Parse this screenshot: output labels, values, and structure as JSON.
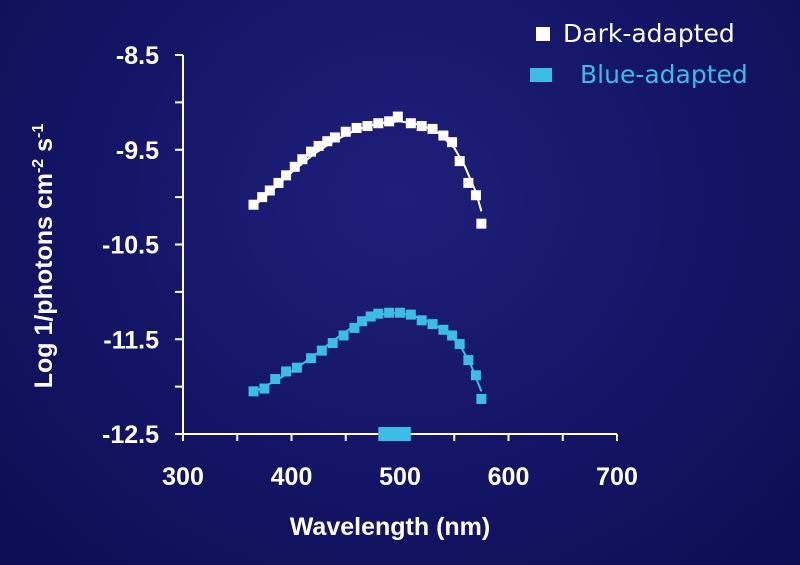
{
  "chart_data": {
    "type": "scatter",
    "title": "",
    "xlabel": "Wavelength (nm)",
    "ylabel_main": "Log 1/photons cm",
    "ylabel_sup1": "-2",
    "ylabel_mid": " s",
    "ylabel_sup2": "-1",
    "xlim": [
      300,
      700
    ],
    "ylim": [
      -12.5,
      -8.5
    ],
    "x_ticks": [
      300,
      400,
      500,
      600,
      700
    ],
    "x_tick_labels": [
      "300",
      "400",
      "500",
      "600",
      "700"
    ],
    "y_ticks": [
      -8.5,
      -9.5,
      -10.5,
      -11.5,
      -12.5
    ],
    "y_tick_labels": [
      "-8.5",
      "-9.5",
      "-10.5",
      "-11.5",
      "-12.5"
    ],
    "y_minor_step": 0.5,
    "legend_placement": "top-right",
    "marker_on_x_axis": {
      "x": [
        480,
        510
      ],
      "color": "#3bbde8"
    },
    "series": [
      {
        "name": "Dark-adapted",
        "color": "#ffffff",
        "marker": "square",
        "points": [
          [
            365,
            -10.08
          ],
          [
            373,
            -10.0
          ],
          [
            380,
            -9.93
          ],
          [
            388,
            -9.85
          ],
          [
            395,
            -9.77
          ],
          [
            403,
            -9.68
          ],
          [
            410,
            -9.6
          ],
          [
            418,
            -9.52
          ],
          [
            425,
            -9.46
          ],
          [
            433,
            -9.41
          ],
          [
            440,
            -9.37
          ],
          [
            450,
            -9.31
          ],
          [
            460,
            -9.27
          ],
          [
            470,
            -9.25
          ],
          [
            480,
            -9.22
          ],
          [
            490,
            -9.2
          ],
          [
            498,
            -9.15
          ],
          [
            510,
            -9.22
          ],
          [
            520,
            -9.25
          ],
          [
            530,
            -9.28
          ],
          [
            540,
            -9.35
          ],
          [
            548,
            -9.42
          ],
          [
            555,
            -9.62
          ],
          [
            563,
            -9.85
          ],
          [
            570,
            -9.98
          ],
          [
            575,
            -10.28
          ]
        ],
        "fit": [
          [
            365,
            -10.1
          ],
          [
            380,
            -9.95
          ],
          [
            400,
            -9.74
          ],
          [
            420,
            -9.55
          ],
          [
            440,
            -9.4
          ],
          [
            460,
            -9.29
          ],
          [
            480,
            -9.22
          ],
          [
            500,
            -9.2
          ],
          [
            520,
            -9.24
          ],
          [
            535,
            -9.32
          ],
          [
            550,
            -9.48
          ],
          [
            560,
            -9.68
          ],
          [
            570,
            -9.95
          ],
          [
            575,
            -10.15
          ]
        ]
      },
      {
        "name": "Blue-adapted",
        "color": "#3bbde8",
        "marker": "square",
        "points": [
          [
            365,
            -12.05
          ],
          [
            375,
            -12.02
          ],
          [
            385,
            -11.92
          ],
          [
            395,
            -11.84
          ],
          [
            405,
            -11.8
          ],
          [
            418,
            -11.7
          ],
          [
            428,
            -11.62
          ],
          [
            438,
            -11.54
          ],
          [
            448,
            -11.46
          ],
          [
            458,
            -11.38
          ],
          [
            465,
            -11.31
          ],
          [
            473,
            -11.26
          ],
          [
            480,
            -11.23
          ],
          [
            490,
            -11.22
          ],
          [
            500,
            -11.22
          ],
          [
            510,
            -11.24
          ],
          [
            520,
            -11.3
          ],
          [
            530,
            -11.34
          ],
          [
            540,
            -11.4
          ],
          [
            548,
            -11.46
          ],
          [
            555,
            -11.55
          ],
          [
            563,
            -11.72
          ],
          [
            570,
            -11.88
          ],
          [
            575,
            -12.13
          ]
        ],
        "fit": [
          [
            365,
            -12.06
          ],
          [
            380,
            -11.97
          ],
          [
            400,
            -11.84
          ],
          [
            420,
            -11.68
          ],
          [
            440,
            -11.5
          ],
          [
            460,
            -11.34
          ],
          [
            480,
            -11.24
          ],
          [
            500,
            -11.22
          ],
          [
            520,
            -11.28
          ],
          [
            540,
            -11.4
          ],
          [
            555,
            -11.56
          ],
          [
            565,
            -11.76
          ],
          [
            575,
            -12.05
          ]
        ]
      }
    ]
  }
}
